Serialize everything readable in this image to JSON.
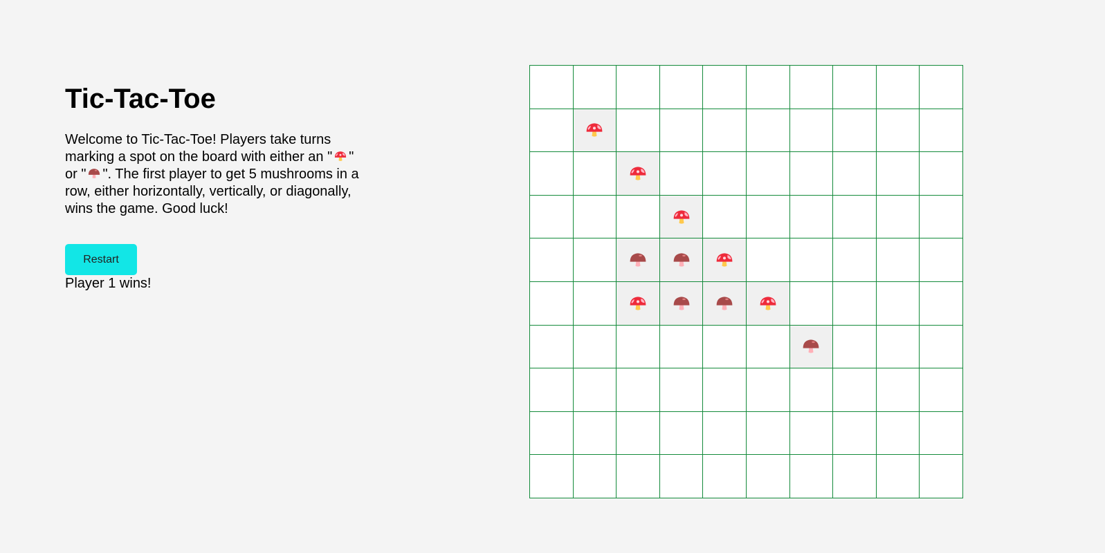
{
  "title": "Tic-Tac-Toe",
  "description": {
    "line1": "Welcome to Tic-Tac-Toe! Players take turns",
    "line2_pre": "marking a spot on the board with either an \"",
    "line2_post": "\"",
    "line3_pre": "or \"",
    "line3_post": "\". The first player to get 5 mushrooms in a",
    "line4": "row, either horizontally, vertically, or diagonally,",
    "line5": "wins the game. Good luck!"
  },
  "restart_label": "Restart",
  "status": "Player 1 wins!",
  "players": {
    "1": {
      "icon": "red-mushroom-icon"
    },
    "2": {
      "icon": "brown-mushroom-icon"
    }
  },
  "board": {
    "rows": 10,
    "cols": 10,
    "cells": [
      [
        0,
        0,
        0,
        0,
        0,
        0,
        0,
        0,
        0,
        0
      ],
      [
        0,
        1,
        0,
        0,
        0,
        0,
        0,
        0,
        0,
        0
      ],
      [
        0,
        0,
        1,
        0,
        0,
        0,
        0,
        0,
        0,
        0
      ],
      [
        0,
        0,
        0,
        1,
        0,
        0,
        0,
        0,
        0,
        0
      ],
      [
        0,
        0,
        2,
        2,
        1,
        0,
        0,
        0,
        0,
        0
      ],
      [
        0,
        0,
        1,
        2,
        2,
        1,
        0,
        0,
        0,
        0
      ],
      [
        0,
        0,
        0,
        0,
        0,
        0,
        2,
        0,
        0,
        0
      ],
      [
        0,
        0,
        0,
        0,
        0,
        0,
        0,
        0,
        0,
        0
      ],
      [
        0,
        0,
        0,
        0,
        0,
        0,
        0,
        0,
        0,
        0
      ],
      [
        0,
        0,
        0,
        0,
        0,
        0,
        0,
        0,
        0,
        0
      ]
    ]
  },
  "colors": {
    "grid_line": "#138a3a",
    "button": "#12e6e6",
    "filled_cell": "#f0f0f0",
    "background": "#f4f4f4"
  }
}
